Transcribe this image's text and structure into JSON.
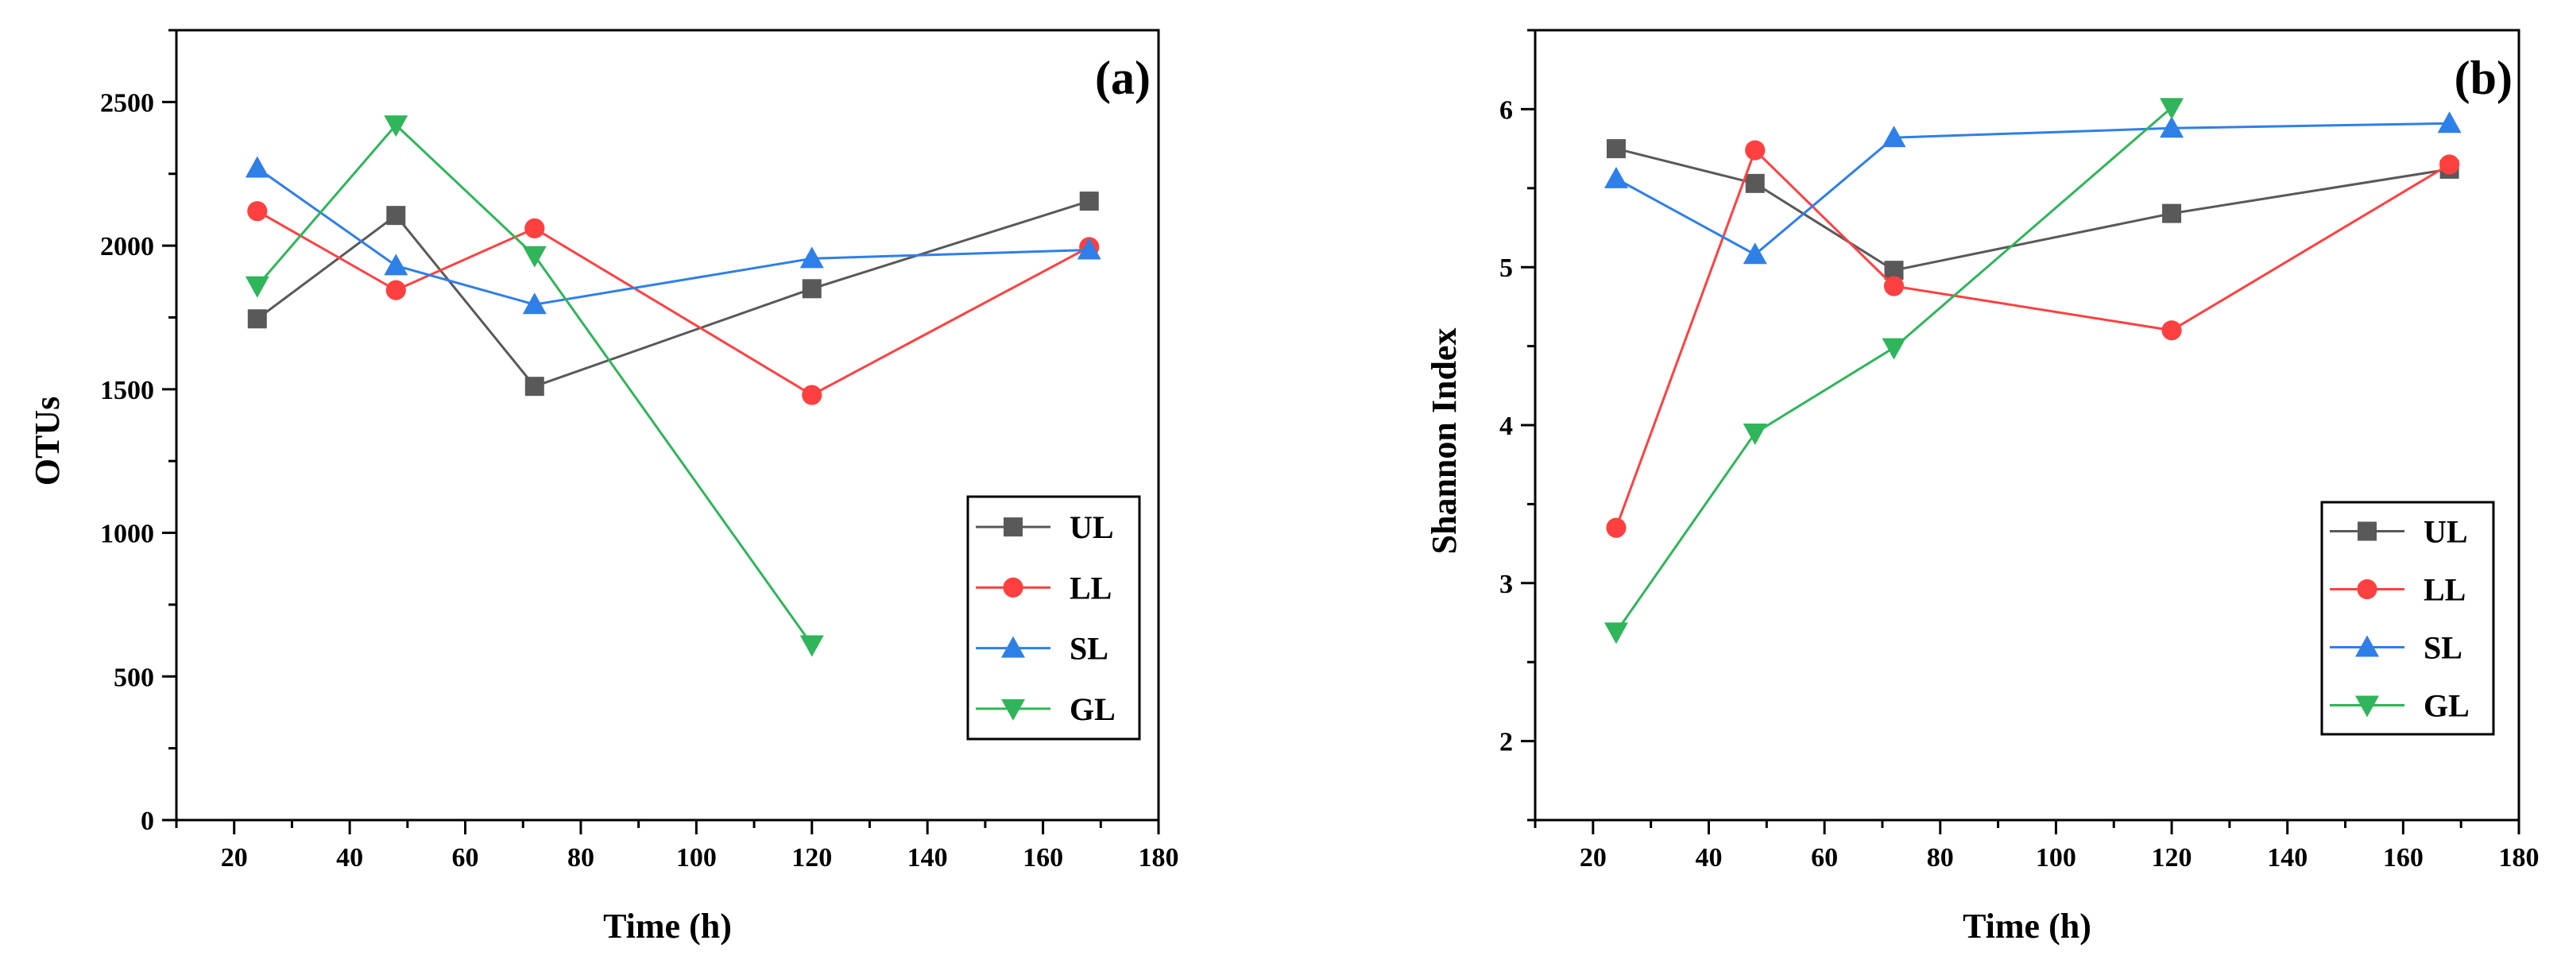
{
  "chart_data": [
    {
      "type": "line",
      "panel_label": "(a)",
      "xlabel": "Time (h)",
      "ylabel": "OTUs",
      "xlim": [
        10,
        180
      ],
      "ylim": [
        0,
        2750
      ],
      "xticks": [
        "20",
        "40",
        "60",
        "80",
        "100",
        "120",
        "140",
        "160",
        "180"
      ],
      "yticks": [
        "0",
        "500",
        "1000",
        "1500",
        "2000",
        "2500"
      ],
      "grid": false,
      "legend_position": "bottom-right",
      "series": [
        {
          "name": "UL",
          "color": "#595959",
          "marker": "square",
          "x": [
            24,
            48,
            72,
            120,
            168
          ],
          "y": [
            1745,
            2105,
            1510,
            1850,
            2155
          ]
        },
        {
          "name": "LL",
          "color": "#ff4040",
          "marker": "circle",
          "x": [
            24,
            48,
            72,
            120,
            168
          ],
          "y": [
            2120,
            1845,
            2060,
            1480,
            1995
          ]
        },
        {
          "name": "SL",
          "color": "#2f7fe8",
          "marker": "triangle-up",
          "x": [
            24,
            48,
            72,
            120,
            168
          ],
          "y": [
            2270,
            1930,
            1795,
            1955,
            1985
          ]
        },
        {
          "name": "GL",
          "color": "#2fb55a",
          "marker": "triangle-down",
          "x": [
            24,
            48,
            72,
            120
          ],
          "y": [
            1860,
            2420,
            1965,
            610
          ]
        }
      ]
    },
    {
      "type": "line",
      "panel_label": "(b)",
      "xlabel": "Time (h)",
      "ylabel": "Shannon Index",
      "xlim": [
        10,
        180
      ],
      "ylim": [
        1.5,
        6.5
      ],
      "xticks": [
        "20",
        "40",
        "60",
        "80",
        "100",
        "120",
        "140",
        "160",
        "180"
      ],
      "yticks": [
        "2",
        "3",
        "4",
        "5",
        "6"
      ],
      "grid": false,
      "legend_position": "bottom-right",
      "series": [
        {
          "name": "UL",
          "color": "#595959",
          "marker": "square",
          "x": [
            24,
            48,
            72,
            120,
            168
          ],
          "y": [
            5.75,
            5.53,
            4.98,
            5.34,
            5.62
          ]
        },
        {
          "name": "LL",
          "color": "#ff4040",
          "marker": "circle",
          "x": [
            24,
            48,
            72,
            120,
            168
          ],
          "y": [
            3.35,
            5.74,
            4.88,
            4.6,
            5.65
          ]
        },
        {
          "name": "SL",
          "color": "#2f7fe8",
          "marker": "triangle-up",
          "x": [
            24,
            48,
            72,
            120,
            168
          ],
          "y": [
            5.56,
            5.08,
            5.82,
            5.88,
            5.91
          ]
        },
        {
          "name": "GL",
          "color": "#2fb55a",
          "marker": "triangle-down",
          "x": [
            24,
            48,
            72,
            120
          ],
          "y": [
            2.69,
            3.95,
            4.49,
            6.01
          ]
        }
      ]
    }
  ]
}
